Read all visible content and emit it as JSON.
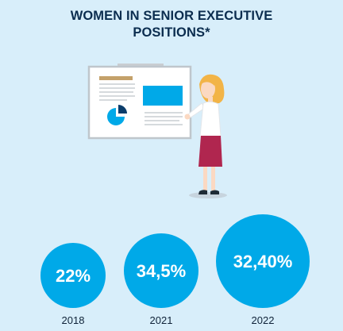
{
  "title": {
    "line1": "WOMEN IN SENIOR EXECUTIVE",
    "line2": "POSITIONS*"
  },
  "colors": {
    "background": "#d8eefa",
    "title": "#0b2d4f",
    "bubble": "#00a9e8",
    "bubble_text": "#ffffff",
    "label": "#0f2238"
  },
  "chart_data": {
    "type": "bubble",
    "categories": [
      "2018",
      "2021",
      "2022"
    ],
    "values": [
      22,
      34.5,
      32.4
    ],
    "value_labels": [
      "22%",
      "34,5%",
      "32,40%"
    ]
  }
}
